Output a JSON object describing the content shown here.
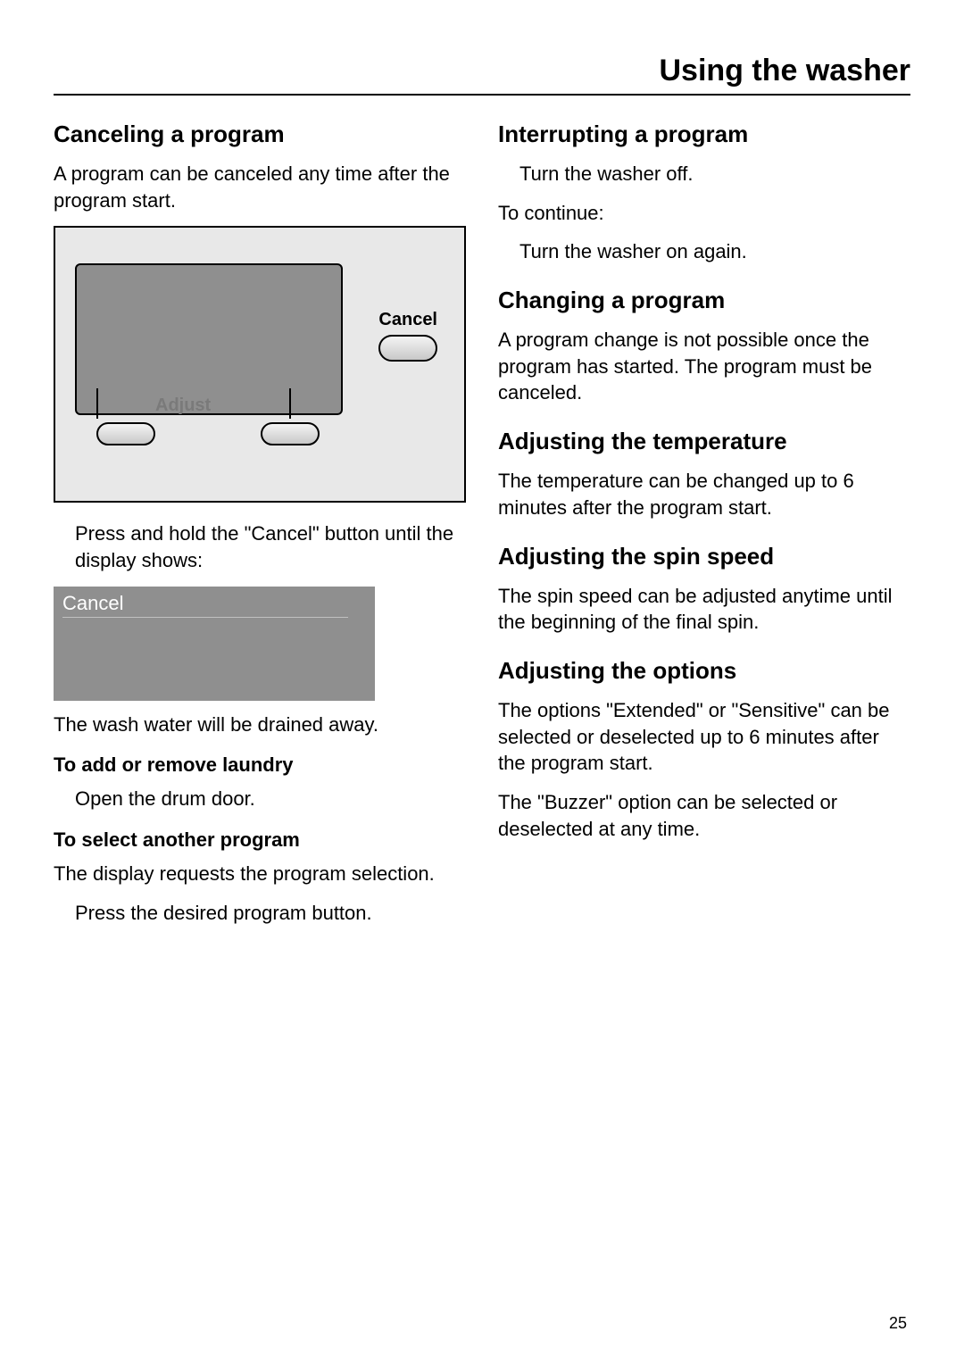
{
  "page": {
    "title": "Using the washer",
    "number": "25"
  },
  "left": {
    "h_cancel": "Canceling a program",
    "p_cancel_intro": "A program can be canceled any time after the program start.",
    "panel": {
      "cancel_label": "Cancel",
      "adjust_label": "Adjust"
    },
    "step_press_hold": "Press and hold the \"Cancel\" button until the display shows:",
    "mini_display_text": "Cancel",
    "p_drain": "The wash water will be drained away.",
    "h_add_remove": "To add or remove laundry",
    "step_open_drum": "Open the drum door.",
    "h_select_another": "To select another program",
    "p_display_requests": "The display requests the program selection.",
    "step_press_program": "Press the desired program button."
  },
  "right": {
    "h_interrupt": "Interrupting a program",
    "step_turn_off": "Turn the washer off.",
    "p_to_continue": "To continue:",
    "step_turn_on": "Turn the washer on again.",
    "h_changing": "Changing a program",
    "p_changing": "A program change is not possible once the program has started. The program must be canceled.",
    "h_temp": "Adjusting the temperature",
    "p_temp": "The temperature can be changed up to 6 minutes after the program start.",
    "h_spin": "Adjusting the spin speed",
    "p_spin": "The spin speed can be adjusted anytime until the beginning of the final spin.",
    "h_options": "Adjusting the options",
    "p_options1": "The options \"Extended\" or \"Sensitive\" can be selected or deselected up to 6 minutes after the program start.",
    "p_options2": "The \"Buzzer\" option can be selected or deselected at any time."
  },
  "style": {
    "bg": "#ffffff",
    "text": "#000000",
    "panel_bg": "#e8e8e8",
    "screen_bg": "#8f8f8f",
    "display_text": "#ffffff",
    "adjust_color": "#7a7a7a"
  }
}
